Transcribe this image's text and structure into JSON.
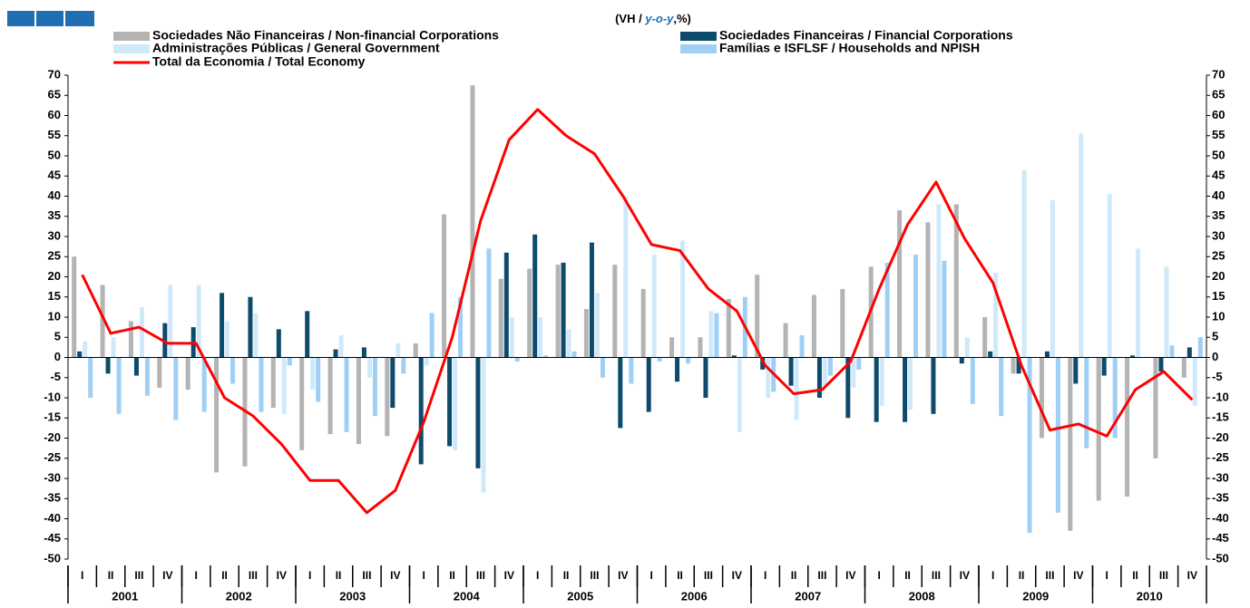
{
  "chart_data": {
    "type": "bar",
    "subtitle": {
      "prefix": "(VH / ",
      "emphasis": "y-o-y",
      "suffix": ",%)"
    },
    "categories": [
      "I",
      "II",
      "III",
      "IV",
      "I",
      "II",
      "III",
      "IV",
      "I",
      "II",
      "III",
      "IV",
      "I",
      "II",
      "III",
      "IV",
      "I",
      "II",
      "III",
      "IV",
      "I",
      "II",
      "III",
      "IV",
      "I",
      "II",
      "III",
      "IV",
      "I",
      "II",
      "III",
      "IV",
      "I",
      "II",
      "III",
      "IV",
      "I",
      "II",
      "III",
      "IV"
    ],
    "years": [
      "2001",
      "2002",
      "2003",
      "2004",
      "2005",
      "2006",
      "2007",
      "2008",
      "2009",
      "2010"
    ],
    "series": [
      {
        "name": "Sociedades Não Financeiras / Non-financial Corporations",
        "color": "#b3b3b3",
        "values": [
          25,
          18,
          9,
          -7.5,
          -8,
          -28.5,
          -27,
          -12.5,
          -23,
          -19,
          -21.5,
          -19.5,
          3.5,
          35.5,
          67.5,
          19.5,
          22,
          23,
          12,
          23,
          17,
          5,
          5,
          14.5,
          20.5,
          8.5,
          15.5,
          17,
          22.5,
          36.5,
          33.5,
          38,
          10,
          -4,
          -20,
          -43,
          -35.5,
          -34.5,
          -25,
          -5
        ]
      },
      {
        "name": "Sociedades Financeiras / Financial Corporations",
        "color": "#0d4a6b",
        "values": [
          1.5,
          -4,
          -4.5,
          8.5,
          7.5,
          16,
          15,
          7,
          11.5,
          2,
          2.5,
          -12.5,
          -26.5,
          -22,
          -27.5,
          26,
          30.5,
          23.5,
          28.5,
          -17.5,
          -13.5,
          -6,
          -10,
          0.5,
          -3,
          -7,
          -10,
          -15,
          -16,
          -16,
          -14,
          -1.5,
          1.5,
          -4,
          1.5,
          -6.5,
          -4.5,
          0.5,
          -3.5,
          2.5
        ]
      },
      {
        "name": "Administrações Públicas / General Government",
        "color": "#cfe9fb",
        "values": [
          4,
          5,
          12.5,
          18,
          18,
          9,
          11,
          -14,
          -8,
          5.5,
          -5,
          3.5,
          -2,
          -23,
          -33.5,
          10,
          10,
          7,
          16,
          40,
          25.5,
          29,
          11.5,
          -18.5,
          -10,
          -15.5,
          -7,
          -7.5,
          -12,
          -13,
          38,
          5,
          21,
          46.5,
          39,
          55.5,
          40.5,
          27,
          22.5,
          -12
        ]
      },
      {
        "name": "Famílias e ISFLSF / Households and NPISH",
        "color": "#9fcff5",
        "values": [
          -10,
          -14,
          -9.5,
          -15.5,
          -13.5,
          -6.5,
          -13.5,
          -2,
          -11,
          -18.5,
          -14.5,
          -4,
          11,
          15,
          27,
          -1,
          0.5,
          1.5,
          -5,
          -6.5,
          -1,
          -1.5,
          11,
          15,
          -8.5,
          5.5,
          -4.5,
          -3,
          23.5,
          25.5,
          24,
          -11.5,
          -14.5,
          -43.5,
          -38.5,
          -22.5,
          -20,
          0,
          3,
          5
        ]
      },
      {
        "name": "Total da Economia / Total Economy",
        "color": "#ff0000",
        "type": "line",
        "values": [
          20.5,
          6,
          7.5,
          3.5,
          3.5,
          -10,
          -14.5,
          -21.5,
          -30.5,
          -30.5,
          -38.5,
          -33,
          -16,
          5,
          34,
          54,
          61.5,
          55,
          50.5,
          40,
          28,
          26.5,
          17,
          11.5,
          -2,
          -9,
          -8,
          -1,
          17,
          33,
          43.5,
          29.5,
          18.5,
          -2,
          -18,
          -16.5,
          -19.5,
          -8,
          -3.5,
          -10.5
        ]
      }
    ],
    "ylim": [
      -50,
      70
    ],
    "yticks": [
      -50,
      -45,
      -40,
      -35,
      -30,
      -25,
      -20,
      -15,
      -10,
      -5,
      0,
      5,
      10,
      15,
      20,
      25,
      30,
      35,
      40,
      45,
      50,
      55,
      60,
      65,
      70
    ],
    "grid": false
  }
}
